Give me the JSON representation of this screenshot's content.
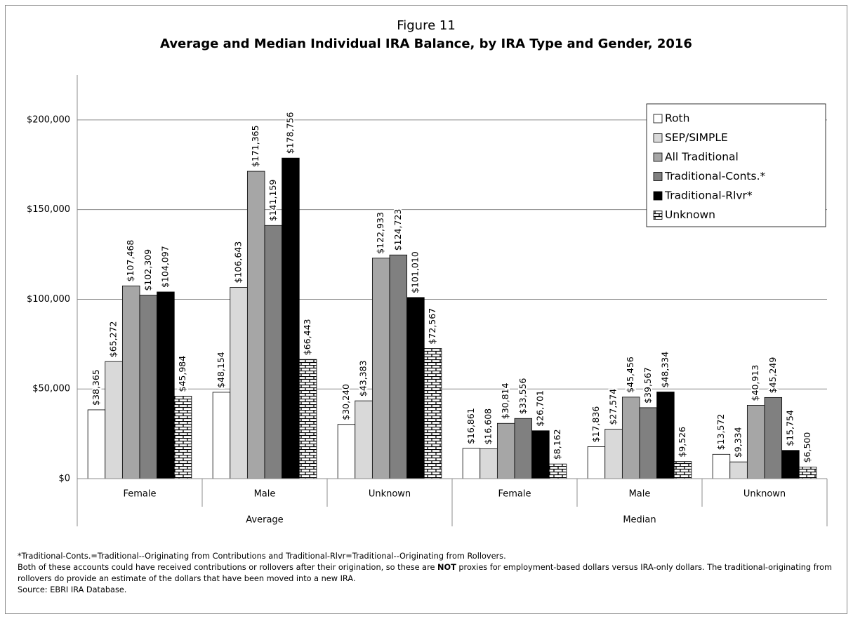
{
  "chart_data": {
    "type": "bar",
    "figure_label": "Figure 11",
    "title": "Average and Median Individual IRA Balance, by IRA Type and Gender, 2016",
    "categories": [
      "Female",
      "Male",
      "Unknown",
      "Female",
      "Male",
      "Unknown"
    ],
    "category_groups": [
      {
        "label": "Average",
        "span": 3
      },
      {
        "label": "Median",
        "span": 3
      }
    ],
    "series": [
      {
        "name": "Roth",
        "color": "#ffffff",
        "values": [
          38365,
          48154,
          30240,
          16861,
          17836,
          13572
        ],
        "value_labels": [
          "$38,365",
          "$48,154",
          "$30,240",
          "$16,861",
          "$17,836",
          "$13,572"
        ]
      },
      {
        "name": "SEP/SIMPLE",
        "color": "#d9d9d9",
        "values": [
          65272,
          106643,
          43383,
          16608,
          27574,
          9334
        ],
        "value_labels": [
          "$65,272",
          "$106,643",
          "$43,383",
          "$16,608",
          "$27,574",
          "$9,334"
        ]
      },
      {
        "name": "All Traditional",
        "color": "#a6a6a6",
        "values": [
          107468,
          171365,
          122933,
          30814,
          45456,
          40913
        ],
        "value_labels": [
          "$107,468",
          "$171,365",
          "$122,933",
          "$30,814",
          "$45,456",
          "$40,913"
        ]
      },
      {
        "name": "Traditional-Conts.*",
        "color": "#808080",
        "values": [
          102309,
          141159,
          124723,
          33556,
          39567,
          45249
        ],
        "value_labels": [
          "$102,309",
          "$141,159",
          "$124,723",
          "$33,556",
          "$39,567",
          "$45,249"
        ]
      },
      {
        "name": "Traditional-Rlvr*",
        "color": "#000000",
        "values": [
          104097,
          178756,
          101010,
          26701,
          48334,
          15754
        ],
        "value_labels": [
          "$104,097",
          "$178,756",
          "$101,010",
          "$26,701",
          "$48,334",
          "$15,754"
        ]
      },
      {
        "name": "Unknown",
        "color": "#ffffff",
        "pattern": "brick",
        "values": [
          45984,
          66443,
          72567,
          8162,
          9526,
          6500
        ],
        "value_labels": [
          "$45,984",
          "$66,443",
          "$72,567",
          "$8,162",
          "$9,526",
          "$6,500"
        ]
      }
    ],
    "ylim": [
      0,
      225000
    ],
    "yticks": [
      {
        "value": 0,
        "label": "$0"
      },
      {
        "value": 50000,
        "label": "$50,000"
      },
      {
        "value": 100000,
        "label": "$100,000"
      },
      {
        "value": 150000,
        "label": "$150,000"
      },
      {
        "value": 200000,
        "label": "$200,000"
      }
    ],
    "grid": true,
    "legend": "top-right",
    "notes": [
      [
        "*Traditional-Conts.=Traditional--Originating from Contributions and Traditional-Rlvr=Traditional--Originating from Rollovers."
      ],
      [
        "Both of these accounts could have received contributions or rollovers after their origination, so these are ",
        "NOT",
        " proxies for employment-based dollars versus IRA-only dollars.  The traditional-originating from rollovers do provide an estimate of the dollars that have been moved into a new IRA."
      ],
      [
        "Source: EBRI IRA Database."
      ]
    ]
  }
}
